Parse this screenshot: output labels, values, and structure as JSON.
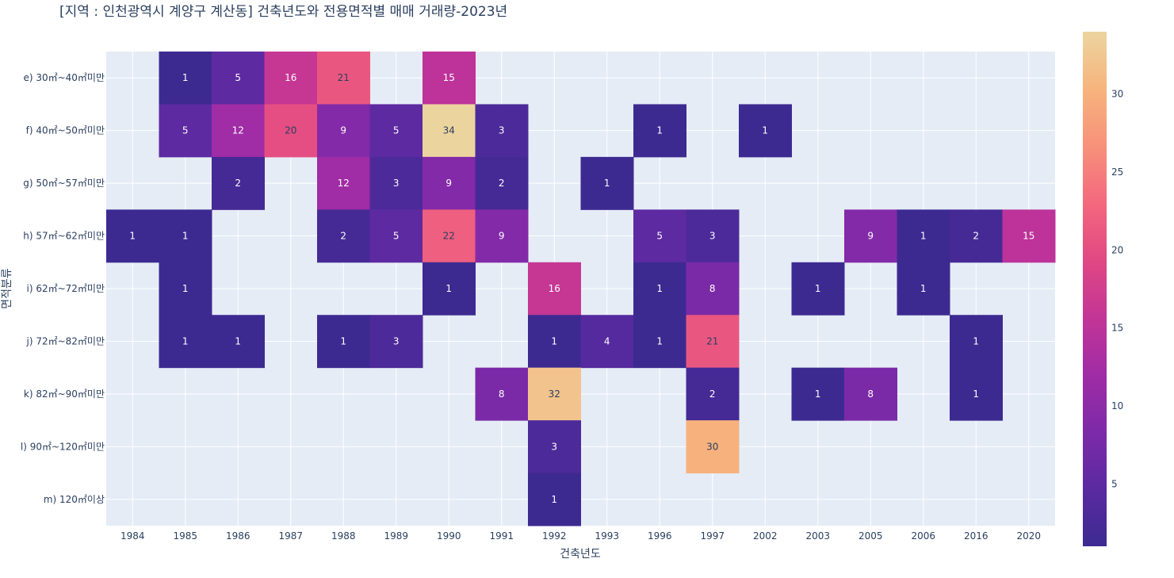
{
  "chart_data": {
    "type": "heatmap",
    "title": "[지역 : 인천광역시 계양구 계산동] 건축년도와 전용면적별 매매 거래량-2023년",
    "xlabel": "건축년도",
    "ylabel": "면적분류",
    "x": [
      "1984",
      "1985",
      "1986",
      "1987",
      "1988",
      "1989",
      "1990",
      "1991",
      "1992",
      "1993",
      "1996",
      "1997",
      "2002",
      "2003",
      "2005",
      "2006",
      "2016",
      "2020"
    ],
    "y": [
      "e) 30㎡~40㎡미만",
      "f) 40㎡~50㎡미만",
      "g) 50㎡~57㎡미만",
      "h) 57㎡~62㎡미만",
      "i) 62㎡~72㎡미만",
      "j) 72㎡~82㎡미만",
      "k) 82㎡~90㎡미만",
      "l) 90㎡~120㎡미만",
      "m) 120㎡이상"
    ],
    "z": [
      [
        null,
        1,
        5,
        16,
        21,
        null,
        15,
        null,
        null,
        null,
        null,
        null,
        null,
        null,
        null,
        null,
        null,
        null
      ],
      [
        null,
        5,
        12,
        20,
        9,
        5,
        34,
        3,
        null,
        null,
        1,
        null,
        1,
        null,
        null,
        null,
        null,
        null
      ],
      [
        null,
        null,
        2,
        null,
        12,
        3,
        9,
        2,
        null,
        1,
        null,
        null,
        null,
        null,
        null,
        null,
        null,
        null
      ],
      [
        1,
        1,
        null,
        null,
        2,
        5,
        22,
        9,
        null,
        null,
        5,
        3,
        null,
        null,
        9,
        1,
        2,
        15
      ],
      [
        null,
        1,
        null,
        null,
        null,
        null,
        1,
        null,
        16,
        null,
        1,
        8,
        null,
        1,
        null,
        1,
        null,
        null
      ],
      [
        null,
        1,
        1,
        null,
        1,
        3,
        null,
        null,
        1,
        4,
        1,
        21,
        null,
        null,
        null,
        null,
        1,
        null
      ],
      [
        null,
        null,
        null,
        null,
        null,
        null,
        null,
        8,
        32,
        null,
        null,
        2,
        null,
        1,
        8,
        null,
        1,
        null
      ],
      [
        null,
        null,
        null,
        null,
        null,
        null,
        null,
        null,
        3,
        null,
        null,
        30,
        null,
        null,
        null,
        null,
        null,
        null
      ],
      [
        null,
        null,
        null,
        null,
        null,
        null,
        null,
        null,
        1,
        null,
        null,
        null,
        null,
        null,
        null,
        null,
        null,
        null
      ]
    ],
    "zrange": [
      1,
      34
    ],
    "colorscale": [
      "#3d2a91",
      "#5a2aa1",
      "#7d2aa8",
      "#a02ca6",
      "#c33596",
      "#e04883",
      "#f4687e",
      "#f7917a",
      "#f7b47d",
      "#ecd49f"
    ],
    "colorbar_ticks": [
      5,
      10,
      15,
      20,
      25,
      30
    ],
    "plot_bg": "#e5ecf6",
    "grid": true
  }
}
